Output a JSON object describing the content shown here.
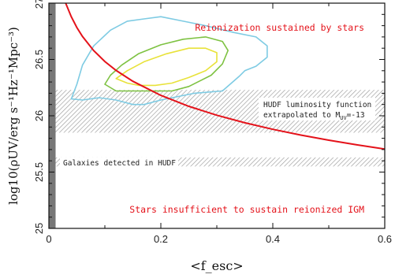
{
  "chart_data": {
    "type": "line",
    "title": "",
    "xlabel": "<f_esc>",
    "ylabel": "log10(ρUV/erg s⁻¹Hz⁻¹Mpc⁻³)",
    "xlim": [
      0.0,
      0.6
    ],
    "ylim": [
      25.0,
      27.0
    ],
    "x_ticks": [
      {
        "value": 0.0,
        "label": "0"
      },
      {
        "value": 0.2,
        "label": "0.2"
      },
      {
        "value": 0.4,
        "label": "0.4"
      },
      {
        "value": 0.6,
        "label": "0.6"
      }
    ],
    "y_ticks": [
      {
        "value": 25.0,
        "label": "25"
      },
      {
        "value": 25.5,
        "label": "25.5"
      },
      {
        "value": 26.0,
        "label": "26"
      },
      {
        "value": 26.5,
        "label": "26.5"
      },
      {
        "value": 27.0,
        "label": "27"
      }
    ],
    "series": [
      {
        "color": "#e4121a",
        "x": [
          0.03,
          0.04,
          0.05,
          0.06,
          0.08,
          0.1,
          0.12,
          0.15,
          0.2,
          0.25,
          0.3,
          0.35,
          0.4,
          0.45,
          0.5,
          0.55,
          0.6
        ],
        "y": [
          27.0,
          26.88,
          26.783,
          26.704,
          26.579,
          26.482,
          26.403,
          26.306,
          26.181,
          26.084,
          26.005,
          25.938,
          25.88,
          25.829,
          25.783,
          25.742,
          25.704
        ]
      }
    ],
    "contours": [
      {
        "color": "#7ecbe3",
        "level": "outer",
        "points": [
          [
            0.04,
            26.15
          ],
          [
            0.05,
            26.28
          ],
          [
            0.06,
            26.45
          ],
          [
            0.08,
            26.62
          ],
          [
            0.11,
            26.76
          ],
          [
            0.14,
            26.84
          ],
          [
            0.17,
            26.86
          ],
          [
            0.2,
            26.88
          ],
          [
            0.24,
            26.84
          ],
          [
            0.28,
            26.8
          ],
          [
            0.33,
            26.74
          ],
          [
            0.37,
            26.7
          ],
          [
            0.39,
            26.62
          ],
          [
            0.39,
            26.52
          ],
          [
            0.37,
            26.44
          ],
          [
            0.35,
            26.4
          ],
          [
            0.34,
            26.35
          ],
          [
            0.31,
            26.22
          ],
          [
            0.26,
            26.2
          ],
          [
            0.2,
            26.14
          ],
          [
            0.17,
            26.1
          ],
          [
            0.15,
            26.1
          ],
          [
            0.12,
            26.14
          ],
          [
            0.09,
            26.16
          ],
          [
            0.06,
            26.14
          ]
        ]
      },
      {
        "color": "#7ec242",
        "level": "middle",
        "points": [
          [
            0.1,
            26.28
          ],
          [
            0.11,
            26.36
          ],
          [
            0.13,
            26.45
          ],
          [
            0.16,
            26.55
          ],
          [
            0.2,
            26.63
          ],
          [
            0.24,
            26.68
          ],
          [
            0.28,
            26.7
          ],
          [
            0.31,
            26.66
          ],
          [
            0.32,
            26.58
          ],
          [
            0.31,
            26.46
          ],
          [
            0.29,
            26.36
          ],
          [
            0.25,
            26.26
          ],
          [
            0.22,
            26.22
          ],
          [
            0.18,
            26.22
          ],
          [
            0.15,
            26.22
          ],
          [
            0.12,
            26.22
          ]
        ]
      },
      {
        "color": "#e8e23a",
        "level": "inner",
        "points": [
          [
            0.12,
            26.33
          ],
          [
            0.14,
            26.4
          ],
          [
            0.17,
            26.48
          ],
          [
            0.21,
            26.55
          ],
          [
            0.25,
            26.6
          ],
          [
            0.28,
            26.6
          ],
          [
            0.3,
            26.56
          ],
          [
            0.3,
            26.48
          ],
          [
            0.28,
            26.4
          ],
          [
            0.25,
            26.34
          ],
          [
            0.22,
            26.29
          ],
          [
            0.19,
            26.27
          ],
          [
            0.16,
            26.27
          ],
          [
            0.14,
            26.29
          ]
        ]
      }
    ],
    "bands": [
      {
        "name": "HUDF luminosity function extrapolated to M_UV=-13",
        "ymin": 25.85,
        "ymax": 26.23
      },
      {
        "name": "Galaxies detected in HUDF",
        "ymin": 25.55,
        "ymax": 25.63
      }
    ],
    "excluded_region": {
      "xmin": 0.0,
      "xmax": 0.012,
      "color": "#777777"
    },
    "annotations": {
      "top": "Reionization sustained by stars",
      "bottom": "Stars insufficient to sustain reionized IGM",
      "band1_line1": "HUDF luminosity function",
      "band1_line2": "extrapolated to M",
      "band1_sub": "UV",
      "band1_tail": "=-13",
      "band2": "Galaxies detected in HUDF"
    },
    "grid": false,
    "legend": "none"
  }
}
